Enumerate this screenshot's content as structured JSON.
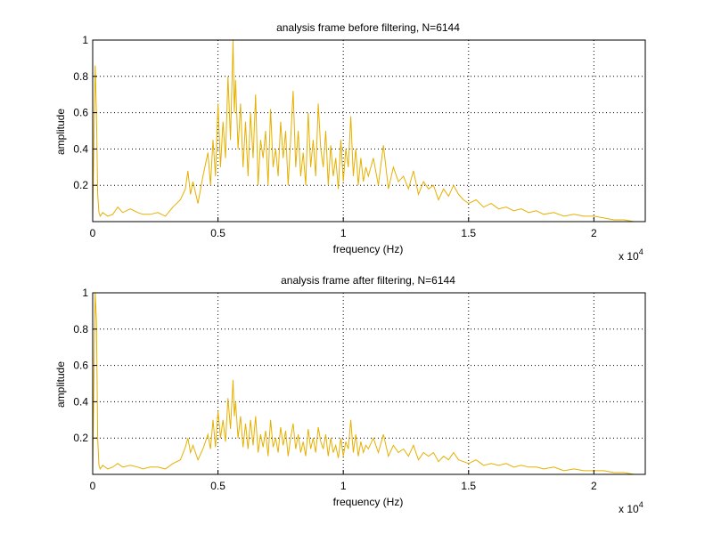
{
  "colors": {
    "line": "#e6b000",
    "grid": "#000000",
    "axes": "#000000",
    "background": "#ffffff"
  },
  "chart_data": [
    {
      "type": "line",
      "title": "analysis frame before filtering, N=6144",
      "xlabel": "frequency (Hz)",
      "ylabel": "amplitude",
      "x_multiplier_label": "x 10",
      "x_multiplier_exp": "4",
      "xlim": [
        0,
        22050
      ],
      "ylim": [
        0,
        1
      ],
      "grid": true,
      "xticks": [
        0,
        5000,
        10000,
        15000,
        20000
      ],
      "xtick_labels": [
        "0",
        "0.5",
        "1",
        "1.5",
        "2"
      ],
      "yticks": [
        0.2,
        0.4,
        0.6,
        0.8,
        1
      ],
      "ytick_labels": [
        "0.2",
        "0.4",
        "0.6",
        "0.8",
        "1"
      ],
      "series": [
        {
          "x": [
            0,
            100,
            150,
            200,
            250,
            300,
            400,
            600,
            800,
            1000,
            1200,
            1500,
            1800,
            2000,
            2300,
            2600,
            2900,
            3200,
            3500,
            3700,
            3800,
            3900,
            4000,
            4200,
            4400,
            4600,
            4700,
            4800,
            4900,
            5000,
            5100,
            5200,
            5300,
            5400,
            5500,
            5600,
            5650,
            5700,
            5800,
            5900,
            6000,
            6100,
            6200,
            6300,
            6400,
            6500,
            6600,
            6700,
            6800,
            6900,
            7000,
            7100,
            7200,
            7300,
            7400,
            7500,
            7600,
            7700,
            7800,
            7900,
            8000,
            8100,
            8200,
            8300,
            8400,
            8500,
            8600,
            8700,
            8800,
            8900,
            9000,
            9100,
            9200,
            9300,
            9400,
            9500,
            9600,
            9700,
            9800,
            9900,
            10000,
            10100,
            10200,
            10300,
            10400,
            10500,
            10600,
            10700,
            10800,
            10900,
            11000,
            11200,
            11400,
            11600,
            11800,
            12000,
            12200,
            12400,
            12600,
            12800,
            13000,
            13200,
            13400,
            13600,
            13800,
            14000,
            14200,
            14400,
            14600,
            14800,
            15000,
            15300,
            15600,
            15900,
            16200,
            16500,
            16800,
            17100,
            17400,
            17700,
            18000,
            18400,
            18800,
            19200,
            19600,
            20000,
            20400,
            20800,
            21200,
            21600,
            22050
          ],
          "y": [
            0.02,
            0.86,
            0.6,
            0.15,
            0.05,
            0.03,
            0.05,
            0.03,
            0.04,
            0.08,
            0.05,
            0.07,
            0.05,
            0.04,
            0.04,
            0.05,
            0.03,
            0.08,
            0.12,
            0.18,
            0.28,
            0.15,
            0.22,
            0.1,
            0.25,
            0.38,
            0.2,
            0.45,
            0.25,
            0.65,
            0.3,
            0.55,
            0.35,
            0.8,
            0.45,
            1.0,
            0.6,
            0.78,
            0.4,
            0.65,
            0.3,
            0.55,
            0.25,
            0.6,
            0.35,
            0.7,
            0.2,
            0.45,
            0.35,
            0.5,
            0.2,
            0.62,
            0.3,
            0.4,
            0.25,
            0.55,
            0.35,
            0.5,
            0.2,
            0.45,
            0.72,
            0.3,
            0.5,
            0.25,
            0.38,
            0.2,
            0.6,
            0.3,
            0.45,
            0.25,
            0.65,
            0.4,
            0.3,
            0.5,
            0.2,
            0.42,
            0.25,
            0.35,
            0.18,
            0.45,
            0.22,
            0.4,
            0.3,
            0.58,
            0.25,
            0.4,
            0.2,
            0.35,
            0.22,
            0.3,
            0.25,
            0.35,
            0.2,
            0.42,
            0.18,
            0.3,
            0.22,
            0.25,
            0.18,
            0.28,
            0.15,
            0.22,
            0.18,
            0.2,
            0.12,
            0.18,
            0.14,
            0.2,
            0.15,
            0.12,
            0.1,
            0.12,
            0.08,
            0.1,
            0.07,
            0.08,
            0.06,
            0.07,
            0.05,
            0.06,
            0.04,
            0.05,
            0.03,
            0.04,
            0.03,
            0.03,
            0.02,
            0.01,
            0.01,
            0.0,
            0.0
          ]
        }
      ]
    },
    {
      "type": "line",
      "title": "analysis frame after filtering, N=6144",
      "xlabel": "frequency (Hz)",
      "ylabel": "amplitude",
      "x_multiplier_label": "x 10",
      "x_multiplier_exp": "4",
      "xlim": [
        0,
        22050
      ],
      "ylim": [
        0,
        1
      ],
      "grid": true,
      "xticks": [
        0,
        5000,
        10000,
        15000,
        20000
      ],
      "xtick_labels": [
        "0",
        "0.5",
        "1",
        "1.5",
        "2"
      ],
      "yticks": [
        0.2,
        0.4,
        0.6,
        0.8,
        1
      ],
      "ytick_labels": [
        "0.2",
        "0.4",
        "0.6",
        "0.8",
        "1"
      ],
      "series": [
        {
          "x": [
            0,
            100,
            150,
            200,
            250,
            300,
            400,
            600,
            800,
            1000,
            1200,
            1500,
            1800,
            2000,
            2300,
            2600,
            2900,
            3200,
            3500,
            3700,
            3800,
            3900,
            4000,
            4200,
            4400,
            4600,
            4700,
            4800,
            4900,
            5000,
            5100,
            5200,
            5300,
            5400,
            5500,
            5600,
            5650,
            5700,
            5800,
            5900,
            6000,
            6100,
            6200,
            6300,
            6400,
            6500,
            6600,
            6700,
            6800,
            6900,
            7000,
            7100,
            7200,
            7300,
            7400,
            7500,
            7600,
            7700,
            7800,
            7900,
            8000,
            8100,
            8200,
            8300,
            8400,
            8500,
            8600,
            8700,
            8800,
            8900,
            9000,
            9100,
            9200,
            9300,
            9400,
            9500,
            9600,
            9700,
            9800,
            9900,
            10000,
            10100,
            10200,
            10300,
            10400,
            10500,
            10600,
            10700,
            10800,
            10900,
            11000,
            11200,
            11400,
            11600,
            11800,
            12000,
            12200,
            12400,
            12600,
            12800,
            13000,
            13200,
            13400,
            13600,
            13800,
            14000,
            14200,
            14400,
            14600,
            14800,
            15000,
            15300,
            15600,
            15900,
            16200,
            16500,
            16800,
            17100,
            17400,
            17700,
            18000,
            18400,
            18800,
            19200,
            19600,
            20000,
            20400,
            20800,
            21200,
            21600,
            22050
          ],
          "y": [
            0.02,
            1.0,
            0.85,
            0.2,
            0.05,
            0.03,
            0.05,
            0.03,
            0.04,
            0.06,
            0.04,
            0.05,
            0.04,
            0.03,
            0.04,
            0.04,
            0.03,
            0.06,
            0.08,
            0.15,
            0.2,
            0.12,
            0.16,
            0.08,
            0.14,
            0.22,
            0.14,
            0.3,
            0.15,
            0.35,
            0.2,
            0.3,
            0.18,
            0.42,
            0.25,
            0.52,
            0.32,
            0.4,
            0.2,
            0.32,
            0.15,
            0.28,
            0.14,
            0.3,
            0.16,
            0.32,
            0.12,
            0.22,
            0.15,
            0.24,
            0.1,
            0.3,
            0.15,
            0.2,
            0.12,
            0.26,
            0.16,
            0.24,
            0.1,
            0.2,
            0.28,
            0.14,
            0.22,
            0.12,
            0.18,
            0.1,
            0.25,
            0.14,
            0.2,
            0.12,
            0.26,
            0.18,
            0.14,
            0.22,
            0.1,
            0.2,
            0.12,
            0.16,
            0.09,
            0.2,
            0.1,
            0.18,
            0.14,
            0.3,
            0.12,
            0.22,
            0.1,
            0.18,
            0.12,
            0.16,
            0.14,
            0.2,
            0.12,
            0.22,
            0.1,
            0.16,
            0.12,
            0.14,
            0.1,
            0.16,
            0.08,
            0.12,
            0.1,
            0.12,
            0.07,
            0.1,
            0.08,
            0.12,
            0.08,
            0.07,
            0.06,
            0.08,
            0.05,
            0.06,
            0.05,
            0.06,
            0.04,
            0.05,
            0.04,
            0.04,
            0.03,
            0.04,
            0.02,
            0.03,
            0.02,
            0.02,
            0.02,
            0.01,
            0.01,
            0.0,
            0.0
          ]
        }
      ]
    }
  ]
}
